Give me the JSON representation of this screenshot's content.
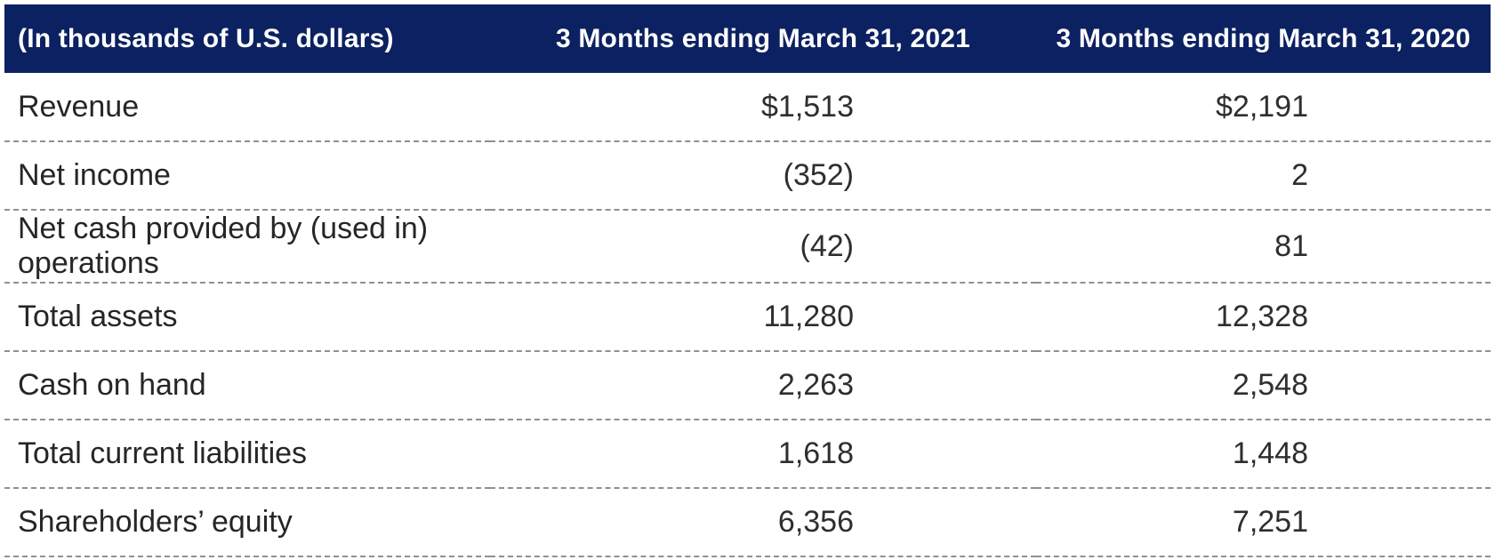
{
  "colors": {
    "header_bg": "#0c2161",
    "header_text": "#ffffff",
    "body_text": "#262626",
    "row_divider": "#909090"
  },
  "table": {
    "unit_note": "(In thousands of U.S. dollars)",
    "columns": [
      "3 Months ending March 31, 2021",
      "3 Months ending March 31, 2020"
    ],
    "rows": [
      {
        "label": "Revenue",
        "v2021": "$1,513",
        "v2020": "$2,191"
      },
      {
        "label": "Net income",
        "v2021": "(352)",
        "v2020": "2"
      },
      {
        "label": "Net cash provided by (used in) operations",
        "v2021": "(42)",
        "v2020": "81"
      },
      {
        "label": "Total assets",
        "v2021": "11,280",
        "v2020": "12,328"
      },
      {
        "label": "Cash on hand",
        "v2021": "2,263",
        "v2020": "2,548"
      },
      {
        "label": "Total current liabilities",
        "v2021": "1,618",
        "v2020": "1,448"
      },
      {
        "label": "Shareholders’ equity",
        "v2021": "6,356",
        "v2020": "7,251"
      }
    ]
  },
  "chart_data": {
    "type": "table",
    "title": "(In thousands of U.S. dollars)",
    "columns": [
      "(In thousands of U.S. dollars)",
      "3 Months ending March 31, 2021",
      "3 Months ending March 31, 2020"
    ],
    "rows": [
      [
        "Revenue",
        "$1,513",
        "$2,191"
      ],
      [
        "Net income",
        "(352)",
        "2"
      ],
      [
        "Net cash provided by (used in) operations",
        "(42)",
        "81"
      ],
      [
        "Total assets",
        "11,280",
        "12,328"
      ],
      [
        "Cash on hand",
        "2,263",
        "2,548"
      ],
      [
        "Total current liabilities",
        "1,618",
        "1,448"
      ],
      [
        "Shareholders’ equity",
        "6,356",
        "7,251"
      ]
    ],
    "layout": {
      "header_style": "navy band, white bold centered text for numeric columns",
      "numeric_alignment": "right",
      "row_divider": "gray dashed line under every data row",
      "grid": "horizontal dashed only, no vertical lines"
    }
  }
}
